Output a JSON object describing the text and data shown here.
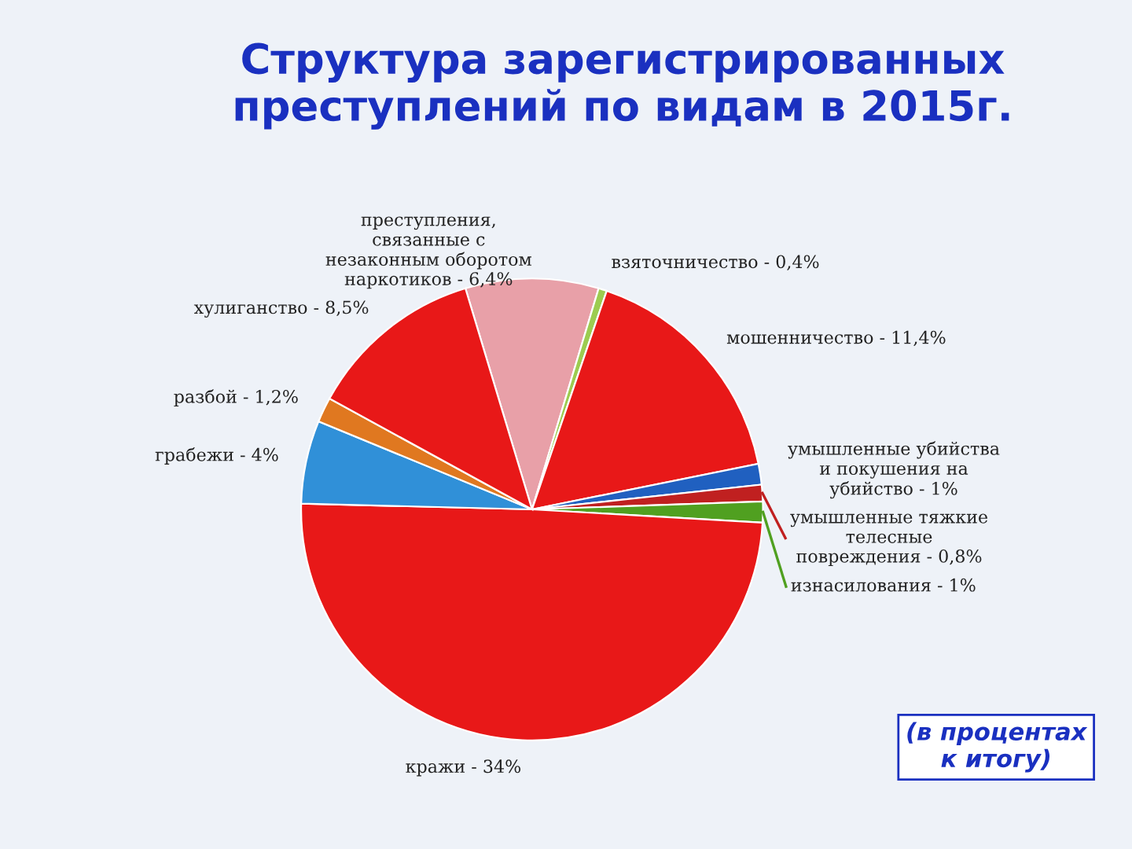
{
  "chart_data": {
    "type": "pie",
    "title": "Структура зарегистрированных\nпреступлений по видам в 2015г.",
    "categories": [
      "преступления,\nсвязанные с\nнезаконным оборотом\nнаркотиков",
      "взяточничество",
      "мошенничество",
      "умышленные убийства\nи покушения на\nубийство",
      "умышленные тяжкие\nтелесные\nповреждения",
      "изнасилования",
      "кражи",
      "грабежи",
      "разбой",
      "хулиганство"
    ],
    "values": [
      6.4,
      0.4,
      11.4,
      1,
      0.8,
      1,
      34,
      4,
      1.2,
      8.5
    ],
    "value_labels": [
      "6,4%",
      "0,4%",
      "11,4%",
      "1%",
      "0,8%",
      "1%",
      "34%",
      "4%",
      "1,2%",
      "8,5%"
    ],
    "colors": [
      "#e8a0a8",
      "#9ccc50",
      "#e81818",
      "#2060c0",
      "#c02020",
      "#50a020",
      "#e81818",
      "#3090d8",
      "#e07820",
      "#e81818"
    ],
    "annotations": [
      "(в процентах\nк итогу)"
    ],
    "legend": false
  }
}
